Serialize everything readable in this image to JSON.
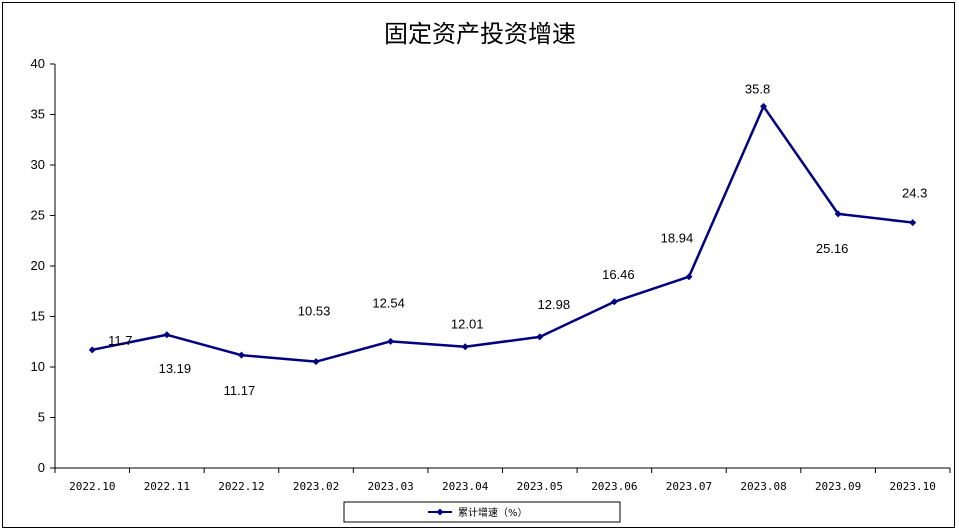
{
  "chart_data": {
    "type": "line",
    "title": "固定资产投资增速",
    "xlabel": "",
    "ylabel": "",
    "ylim": [
      0,
      40
    ],
    "yticks": [
      0,
      5,
      10,
      15,
      20,
      25,
      30,
      35,
      40
    ],
    "grid": false,
    "legend_position": "bottom",
    "categories": [
      "2022.10",
      "2022.11",
      "2022.12",
      "2023.02",
      "2023.03",
      "2023.04",
      "2023.05",
      "2023.06",
      "2023.07",
      "2023.08",
      "2023.09",
      "2023.10"
    ],
    "series": [
      {
        "name": "累计增速（%）",
        "color": "#000080",
        "values": [
          11.7,
          13.19,
          11.17,
          10.53,
          12.54,
          12.01,
          12.98,
          16.46,
          18.94,
          35.8,
          25.16,
          24.3
        ],
        "labels": [
          "11.7",
          "13.19",
          "11.17",
          "10.53",
          "12.54",
          "12.01",
          "12.98",
          "16.46",
          "18.94",
          "35.8",
          "25.16",
          "24.3"
        ]
      }
    ]
  }
}
